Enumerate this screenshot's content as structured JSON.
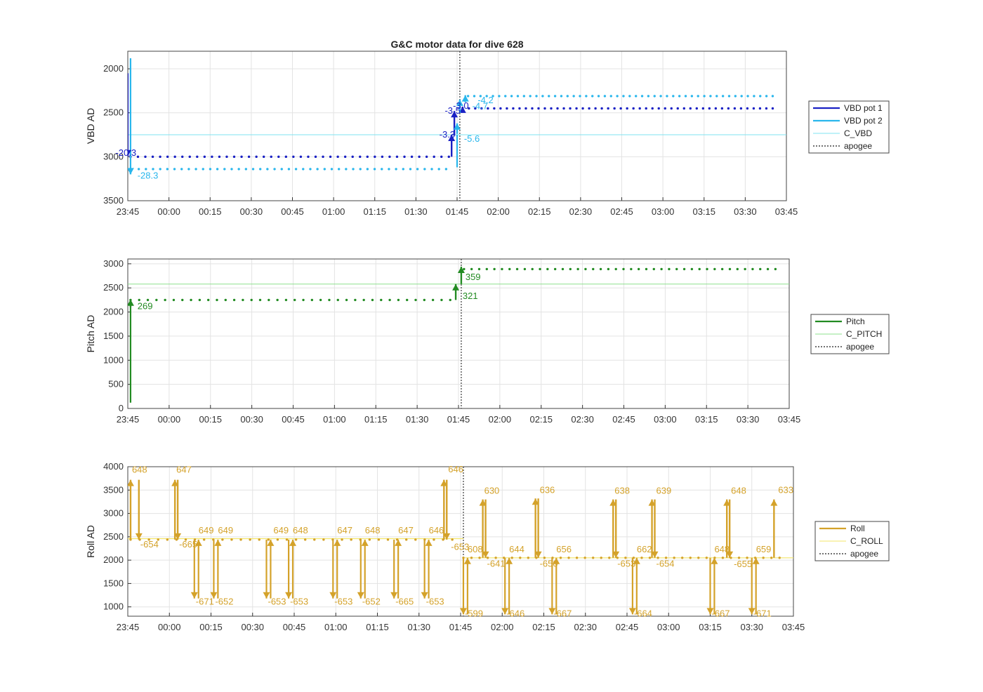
{
  "figure": {
    "title": "G&C motor data for dive 628"
  },
  "colors": {
    "vbd1": "#1a21c4",
    "vbd2": "#29b6ec",
    "cvbd": "#7fe3f0",
    "pitch": "#228b22",
    "cpitch": "#8ee08e",
    "roll": "#d4a22a",
    "croll": "#f3e56a",
    "apogee": "#444444",
    "grid": "#e3e3e3"
  },
  "chart_data": [
    {
      "type": "line",
      "ylabel": "VBD AD",
      "xlim": [
        "23:45",
        "03:45"
      ],
      "ylim": [
        1800,
        3500
      ],
      "yreverse": true,
      "xticks": [
        "23:45",
        "00:00",
        "00:15",
        "00:30",
        "00:45",
        "01:00",
        "01:15",
        "01:30",
        "01:45",
        "02:00",
        "02:15",
        "02:30",
        "02:45",
        "03:00",
        "03:15",
        "03:30",
        "03:45"
      ],
      "yticks": [
        "2000",
        "2500",
        "3000",
        "3500"
      ],
      "apogee": "01:46",
      "constant": {
        "name": "C_VBD",
        "value": 2750
      },
      "series": [
        {
          "name": "VBD pot 1",
          "segments": [
            [
              "23:45",
              3000,
              3075
            ],
            [
              "00:45",
              3000,
              3000
            ],
            [
              "01:43",
              3010,
              3040
            ]
          ],
          "points": {
            "t0": "23:46",
            "t1": "01:42",
            "n": 44,
            "v": 3000
          },
          "points2": {
            "t0": "01:47",
            "t1": "03:40",
            "n": 50,
            "v": 2450
          }
        },
        {
          "name": "VBD pot 2",
          "points": {
            "t0": "23:49",
            "t1": "01:41",
            "n": 44,
            "v": 3140
          },
          "points2": {
            "t0": "01:49",
            "t1": "03:40",
            "n": 50,
            "v": 2310
          }
        }
      ],
      "annotations": [
        {
          "text": "-28.3",
          "t": "23:48",
          "v": 3250,
          "series": "VBD pot 2"
        },
        {
          "text": "-20.3",
          "t": "23:40",
          "v": 2990,
          "series": "VBD pot 1"
        },
        {
          "text": "-3.3",
          "t": "01:38",
          "v": 2780,
          "series": "VBD pot 1"
        },
        {
          "text": "-3.5",
          "t": "01:40",
          "v": 2510,
          "series": "VBD pot 1"
        },
        {
          "text": "-3.0",
          "t": "01:43",
          "v": 2455,
          "series": "VBD pot 1"
        },
        {
          "text": "-5.6",
          "t": "01:47",
          "v": 2830,
          "series": "VBD pot 2"
        },
        {
          "text": "-4.7",
          "t": "01:50",
          "v": 2460,
          "series": "VBD pot 2"
        },
        {
          "text": "-4.2",
          "t": "01:52",
          "v": 2390,
          "series": "VBD pot 2"
        }
      ]
    },
    {
      "type": "line",
      "ylabel": "Pitch AD",
      "xlim": [
        "23:45",
        "03:45"
      ],
      "ylim": [
        0,
        3100
      ],
      "xticks": [
        "23:45",
        "00:00",
        "00:15",
        "00:30",
        "00:45",
        "01:00",
        "01:15",
        "01:30",
        "01:45",
        "02:00",
        "02:15",
        "02:30",
        "02:45",
        "03:00",
        "03:15",
        "03:30",
        "03:45"
      ],
      "yticks": [
        "0",
        "500",
        "1000",
        "1500",
        "2000",
        "2500",
        "3000"
      ],
      "apogee": "01:46",
      "constant": {
        "name": "C_PITCH",
        "value": 2580
      },
      "series": [
        {
          "name": "Pitch",
          "points": {
            "t0": "23:46",
            "t1": "01:42",
            "n": 38,
            "v": 2250
          },
          "points2": {
            "t0": "01:47",
            "t1": "03:40",
            "n": 42,
            "v": 2890
          }
        }
      ],
      "annotations": [
        {
          "text": "269",
          "t": "23:48",
          "v": 2060
        },
        {
          "text": "321",
          "t": "01:46",
          "v": 2270
        },
        {
          "text": "359",
          "t": "01:47",
          "v": 2660
        }
      ]
    },
    {
      "type": "line",
      "ylabel": "Roll AD",
      "xlim": [
        "23:45",
        "03:45"
      ],
      "ylim": [
        800,
        4000
      ],
      "xticks": [
        "23:45",
        "00:00",
        "00:15",
        "00:30",
        "00:45",
        "01:00",
        "01:15",
        "01:30",
        "01:45",
        "02:00",
        "02:15",
        "02:30",
        "02:45",
        "03:00",
        "03:15",
        "03:30",
        "03:45"
      ],
      "yticks": [
        "1000",
        "1500",
        "2000",
        "2500",
        "3000",
        "3500",
        "4000"
      ],
      "apogee": "01:46",
      "constant": {
        "name": "C_ROLL",
        "value": 2460
      },
      "constant2": 2050,
      "annotations": [
        {
          "text": "648",
          "t": "23:46",
          "v": 3870
        },
        {
          "text": "-654",
          "t": "23:49",
          "v": 2270
        },
        {
          "text": "647",
          "t": "00:02",
          "v": 3870
        },
        {
          "text": "-665",
          "t": "00:03",
          "v": 2270
        },
        {
          "text": "649",
          "t": "00:10",
          "v": 2570
        },
        {
          "text": "-671",
          "t": "00:09",
          "v": 1050
        },
        {
          "text": "649",
          "t": "00:17",
          "v": 2570
        },
        {
          "text": "-652",
          "t": "00:16",
          "v": 1050
        },
        {
          "text": "649",
          "t": "00:37",
          "v": 2570
        },
        {
          "text": "-653",
          "t": "00:35",
          "v": 1050
        },
        {
          "text": "648",
          "t": "00:44",
          "v": 2570
        },
        {
          "text": "-653",
          "t": "00:43",
          "v": 1050
        },
        {
          "text": "647",
          "t": "01:00",
          "v": 2570
        },
        {
          "text": "-653",
          "t": "00:59",
          "v": 1050
        },
        {
          "text": "648",
          "t": "01:10",
          "v": 2570
        },
        {
          "text": "-652",
          "t": "01:09",
          "v": 1050
        },
        {
          "text": "647",
          "t": "01:22",
          "v": 2570
        },
        {
          "text": "-665",
          "t": "01:21",
          "v": 1050
        },
        {
          "text": "646",
          "t": "01:33",
          "v": 2570
        },
        {
          "text": "-653",
          "t": "01:32",
          "v": 1050
        },
        {
          "text": "646",
          "t": "01:40",
          "v": 3880
        },
        {
          "text": "-653",
          "t": "01:41",
          "v": 2220
        },
        {
          "text": "608",
          "t": "01:47",
          "v": 2170
        },
        {
          "text": "-599",
          "t": "01:46",
          "v": 790
        },
        {
          "text": "630",
          "t": "01:53",
          "v": 3420
        },
        {
          "text": "-641",
          "t": "01:54",
          "v": 1860
        },
        {
          "text": "644",
          "t": "02:02",
          "v": 2170
        },
        {
          "text": "-646",
          "t": "02:01",
          "v": 790
        },
        {
          "text": "636",
          "t": "02:13",
          "v": 3440
        },
        {
          "text": "-650",
          "t": "02:13",
          "v": 1860
        },
        {
          "text": "656",
          "t": "02:19",
          "v": 2170
        },
        {
          "text": "-667",
          "t": "02:18",
          "v": 790
        },
        {
          "text": "638",
          "t": "02:40",
          "v": 3420
        },
        {
          "text": "-653",
          "t": "02:41",
          "v": 1860
        },
        {
          "text": "662",
          "t": "02:48",
          "v": 2170
        },
        {
          "text": "-664",
          "t": "02:47",
          "v": 790
        },
        {
          "text": "639",
          "t": "02:55",
          "v": 3420
        },
        {
          "text": "-654",
          "t": "02:55",
          "v": 1860
        },
        {
          "text": "648",
          "t": "03:16",
          "v": 2170
        },
        {
          "text": "-667",
          "t": "03:15",
          "v": 790
        },
        {
          "text": "648",
          "t": "03:22",
          "v": 3420
        },
        {
          "text": "-655",
          "t": "03:23",
          "v": 1850
        },
        {
          "text": "659",
          "t": "03:31",
          "v": 2170
        },
        {
          "text": "-671",
          "t": "03:30",
          "v": 790
        },
        {
          "text": "633",
          "t": "03:39",
          "v": 3440
        }
      ],
      "series": [
        {
          "name": "Roll",
          "points": {
            "t0": "23:46",
            "t1": "01:42",
            "n": 36,
            "v": 2440
          },
          "points2": {
            "t0": "01:46",
            "t1": "03:40",
            "n": 40,
            "v": 2050
          },
          "up": [
            [
              "23:46",
              2440,
              3720
            ],
            [
              "00:02",
              2440,
              3720
            ],
            [
              "01:39",
              2440,
              3720
            ],
            [
              "01:53",
              2050,
              3300
            ],
            [
              "02:12",
              2050,
              3320
            ],
            [
              "02:40",
              2050,
              3300
            ],
            [
              "02:54",
              2050,
              3300
            ],
            [
              "03:21",
              2050,
              3300
            ],
            [
              "03:38",
              2050,
              3300
            ]
          ],
          "down": [
            [
              "23:49",
              3720,
              2440
            ],
            [
              "00:03",
              3720,
              2440
            ],
            [
              "01:40",
              3720,
              2440
            ],
            [
              "01:54",
              3300,
              2050
            ],
            [
              "02:13",
              3320,
              2050
            ],
            [
              "02:41",
              3300,
              2050
            ],
            [
              "02:55",
              3300,
              2050
            ],
            [
              "03:22",
              3300,
              2050
            ]
          ],
          "dip": [
            [
              "00:09",
              2440,
              1180
            ],
            [
              "00:16",
              2440,
              1180
            ],
            [
              "00:35",
              2440,
              1180
            ],
            [
              "00:43",
              2440,
              1180
            ],
            [
              "00:59",
              2440,
              1180
            ],
            [
              "01:09",
              2440,
              1180
            ],
            [
              "01:21",
              2440,
              1180
            ],
            [
              "01:32",
              2440,
              1180
            ],
            [
              "01:46",
              2050,
              840
            ],
            [
              "02:01",
              2050,
              840
            ],
            [
              "02:18",
              2050,
              840
            ],
            [
              "02:47",
              2050,
              840
            ],
            [
              "03:15",
              2050,
              840
            ],
            [
              "03:30",
              2050,
              840
            ]
          ]
        }
      ]
    }
  ],
  "legends": [
    {
      "items": [
        "VBD pot 1",
        "VBD pot 2",
        "C_VBD",
        "apogee"
      ]
    },
    {
      "items": [
        "Pitch",
        "C_PITCH",
        "apogee"
      ]
    },
    {
      "items": [
        "Roll",
        "C_ROLL",
        "apogee"
      ]
    }
  ]
}
